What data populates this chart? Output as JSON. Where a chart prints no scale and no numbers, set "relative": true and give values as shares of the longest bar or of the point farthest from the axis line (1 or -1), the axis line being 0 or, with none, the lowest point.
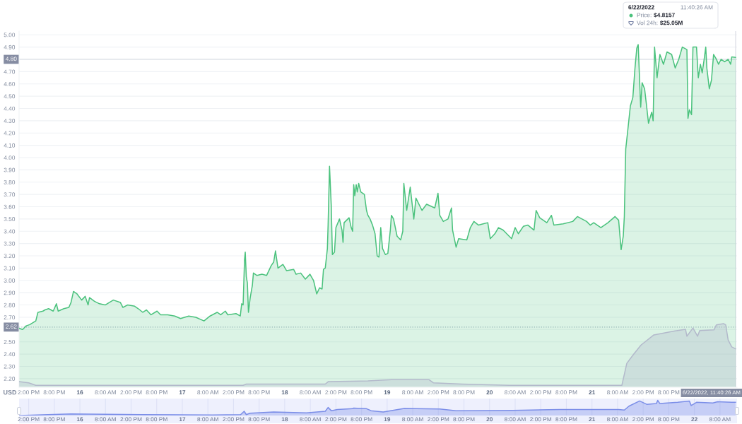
{
  "chart_data": [
    {
      "type": "area",
      "color": "#4bc27d",
      "ylabel": "USD",
      "grid": "y",
      "xlim": [
        "2022-06-15T11:45",
        "2022-06-22T12:00"
      ],
      "ylim": [
        2.13,
        5.03
      ],
      "yticks": [
        {
          "value": 2.2,
          "label": "2.20"
        },
        {
          "value": 2.3,
          "label": "2.30"
        },
        {
          "value": 2.4,
          "label": "2.40"
        },
        {
          "value": 2.5,
          "label": "2.50"
        },
        {
          "value": 2.6,
          "label": null
        },
        {
          "value": 2.7,
          "label": "2.70"
        },
        {
          "value": 2.8,
          "label": "2.80"
        },
        {
          "value": 2.9,
          "label": "2.90"
        },
        {
          "value": 3.0,
          "label": "3.00"
        },
        {
          "value": 3.1,
          "label": "3.10"
        },
        {
          "value": 3.2,
          "label": "3.20"
        },
        {
          "value": 3.3,
          "label": "3.30"
        },
        {
          "value": 3.4,
          "label": "3.40"
        },
        {
          "value": 3.5,
          "label": "3.50"
        },
        {
          "value": 3.6,
          "label": "3.60"
        },
        {
          "value": 3.7,
          "label": "3.70"
        },
        {
          "value": 3.8,
          "label": "3.80"
        },
        {
          "value": 3.9,
          "label": "3.90"
        },
        {
          "value": 4.0,
          "label": "4.00"
        },
        {
          "value": 4.1,
          "label": "4.10"
        },
        {
          "value": 4.2,
          "label": "4.20"
        },
        {
          "value": 4.3,
          "label": "4.30"
        },
        {
          "value": 4.4,
          "label": "4.40"
        },
        {
          "value": 4.5,
          "label": "4.50"
        },
        {
          "value": 4.6,
          "label": "4.60"
        },
        {
          "value": 4.7,
          "label": "4.70"
        },
        {
          "value": 4.8,
          "label": null
        },
        {
          "value": 4.9,
          "label": "4.90"
        },
        {
          "value": 5.0,
          "label": "5.00"
        }
      ],
      "xticks": [
        {
          "value": "2022-06-15T14:00",
          "label": "2:00 PM"
        },
        {
          "value": "2022-06-15T20:00",
          "label": "8:00 PM"
        },
        {
          "value": "2022-06-16T02:00",
          "label": "16"
        },
        {
          "value": "2022-06-16T08:00",
          "label": "8:00 AM"
        },
        {
          "value": "2022-06-16T14:00",
          "label": "2:00 PM"
        },
        {
          "value": "2022-06-16T20:00",
          "label": "8:00 PM"
        },
        {
          "value": "2022-06-17T02:00",
          "label": "17"
        },
        {
          "value": "2022-06-17T08:00",
          "label": "8:00 AM"
        },
        {
          "value": "2022-06-17T14:00",
          "label": "2:00 PM"
        },
        {
          "value": "2022-06-17T20:00",
          "label": "8:00 PM"
        },
        {
          "value": "2022-06-18T02:00",
          "label": "18"
        },
        {
          "value": "2022-06-18T08:00",
          "label": "8:00 AM"
        },
        {
          "value": "2022-06-18T14:00",
          "label": "2:00 PM"
        },
        {
          "value": "2022-06-18T20:00",
          "label": "8:00 PM"
        },
        {
          "value": "2022-06-19T02:00",
          "label": "19"
        },
        {
          "value": "2022-06-19T08:00",
          "label": "8:00 AM"
        },
        {
          "value": "2022-06-19T14:00",
          "label": "2:00 PM"
        },
        {
          "value": "2022-06-19T20:00",
          "label": "8:00 PM"
        },
        {
          "value": "2022-06-20T02:00",
          "label": "20"
        },
        {
          "value": "2022-06-20T08:00",
          "label": "8:00 AM"
        },
        {
          "value": "2022-06-20T14:00",
          "label": "2:00 PM"
        },
        {
          "value": "2022-06-20T20:00",
          "label": "8:00 PM"
        },
        {
          "value": "2022-06-21T02:00",
          "label": "21"
        },
        {
          "value": "2022-06-21T08:00",
          "label": "8:00 AM"
        },
        {
          "value": "2022-06-21T14:00",
          "label": "2:00 PM"
        },
        {
          "value": "2022-06-21T20:00",
          "label": "8:00 PM"
        }
      ],
      "ref_lines": [
        {
          "axis": "y",
          "value": 2.62,
          "label": "2.62",
          "color": "#a6b0c3",
          "line_style": "dotted"
        },
        {
          "axis": "y",
          "value": 4.8,
          "label": "4.80",
          "color": "#dcdfe6",
          "line_style": "solid"
        },
        {
          "axis": "x",
          "value": "2022-06-22T11:40",
          "label": "6/22/2022, 11:40:26 AM",
          "color": "#dcdfe6",
          "line_style": "solid"
        }
      ],
      "annotations": [
        "6/22/2022",
        "11:40:26 AM",
        "Price:",
        "$4.8157",
        "Vol 24h:",
        "$25.05M"
      ],
      "x": [
        "2022-06-15T11:45",
        "2022-06-15T12:35",
        "2022-06-15T13:25",
        "2022-06-15T14:15",
        "2022-06-15T15:40",
        "2022-06-15T16:10",
        "2022-06-15T17:20",
        "2022-06-15T17:50",
        "2022-06-15T18:40",
        "2022-06-15T19:45",
        "2022-06-15T20:30",
        "2022-06-15T20:55",
        "2022-06-15T22:15",
        "2022-06-15T23:25",
        "2022-06-15T23:55",
        "2022-06-16T00:30",
        "2022-06-16T01:20",
        "2022-06-16T02:25",
        "2022-06-16T03:15",
        "2022-06-16T03:55",
        "2022-06-16T04:15",
        "2022-06-16T05:25",
        "2022-06-16T06:35",
        "2022-06-16T07:55",
        "2022-06-16T09:50",
        "2022-06-16T11:30",
        "2022-06-16T12:05",
        "2022-06-16T13:10",
        "2022-06-16T14:50",
        "2022-06-16T15:40",
        "2022-06-16T16:45",
        "2022-06-16T17:35",
        "2022-06-16T18:40",
        "2022-06-16T20:05",
        "2022-06-16T20:55",
        "2022-06-16T22:35",
        "2022-06-17T00:15",
        "2022-06-17T01:35",
        "2022-06-17T03:30",
        "2022-06-17T05:10",
        "2022-06-17T07:05",
        "2022-06-17T08:30",
        "2022-06-17T10:10",
        "2022-06-17T11:00",
        "2022-06-17T12:05",
        "2022-06-17T12:40",
        "2022-06-17T14:35",
        "2022-06-17T15:35",
        "2022-06-17T15:55",
        "2022-06-17T16:15",
        "2022-06-17T16:35",
        "2022-06-17T16:45",
        "2022-06-17T17:00",
        "2022-06-17T17:15",
        "2022-06-17T17:30",
        "2022-06-17T17:55",
        "2022-06-17T18:25",
        "2022-06-17T18:40",
        "2022-06-17T19:30",
        "2022-06-17T20:40",
        "2022-06-17T21:45",
        "2022-06-17T22:50",
        "2022-06-17T23:25",
        "2022-06-17T23:50",
        "2022-06-18T00:25",
        "2022-06-18T01:35",
        "2022-06-18T02:25",
        "2022-06-18T04:05",
        "2022-06-18T04:40",
        "2022-06-18T05:45",
        "2022-06-18T06:50",
        "2022-06-18T07:55",
        "2022-06-18T08:45",
        "2022-06-18T09:30",
        "2022-06-18T10:10",
        "2022-06-18T10:45",
        "2022-06-18T11:05",
        "2022-06-18T11:30",
        "2022-06-18T12:00",
        "2022-06-18T12:10",
        "2022-06-18T12:30",
        "2022-06-18T12:55",
        "2022-06-18T13:10",
        "2022-06-18T13:40",
        "2022-06-18T14:00",
        "2022-06-18T14:50",
        "2022-06-18T15:25",
        "2022-06-18T15:40",
        "2022-06-18T15:55",
        "2022-06-18T17:05",
        "2022-06-18T17:35",
        "2022-06-18T17:55",
        "2022-06-18T18:10",
        "2022-06-18T18:25",
        "2022-06-18T18:45",
        "2022-06-18T19:00",
        "2022-06-18T19:20",
        "2022-06-18T19:50",
        "2022-06-18T20:40",
        "2022-06-18T21:10",
        "2022-06-18T21:30",
        "2022-06-18T22:00",
        "2022-06-18T22:35",
        "2022-06-18T23:10",
        "2022-06-18T23:40",
        "2022-06-19T00:05",
        "2022-06-19T00:30",
        "2022-06-19T00:55",
        "2022-06-19T01:35",
        "2022-06-19T02:10",
        "2022-06-19T02:45",
        "2022-06-19T03:00",
        "2022-06-19T03:30",
        "2022-06-19T04:20",
        "2022-06-19T05:10",
        "2022-06-19T05:40",
        "2022-06-19T05:55",
        "2022-06-19T06:35",
        "2022-06-19T07:25",
        "2022-06-19T08:15",
        "2022-06-19T08:45",
        "2022-06-19T10:10",
        "2022-06-19T11:15",
        "2022-06-19T13:10",
        "2022-06-19T13:55",
        "2022-06-19T14:20",
        "2022-06-19T15:10",
        "2022-06-19T16:15",
        "2022-06-19T17:05",
        "2022-06-19T17:20",
        "2022-06-19T18:10",
        "2022-06-19T18:45",
        "2022-06-19T20:40",
        "2022-06-19T21:30",
        "2022-06-19T22:20",
        "2022-06-19T23:25",
        "2022-06-20T00:30",
        "2022-06-20T01:35",
        "2022-06-20T02:10",
        "2022-06-20T03:15",
        "2022-06-20T04:05",
        "2022-06-20T05:10",
        "2022-06-20T07:10",
        "2022-06-20T08:00",
        "2022-06-20T08:45",
        "2022-06-20T09:55",
        "2022-06-20T11:00",
        "2022-06-20T12:25",
        "2022-06-20T12:55",
        "2022-06-20T13:45",
        "2022-06-20T15:25",
        "2022-06-20T16:30",
        "2022-06-20T17:05",
        "2022-06-20T19:15",
        "2022-06-20T21:30",
        "2022-06-20T22:35",
        "2022-06-21T00:45",
        "2022-06-21T01:35",
        "2022-06-21T02:25",
        "2022-06-21T04:05",
        "2022-06-21T05:45",
        "2022-06-21T07:25",
        "2022-06-21T08:15",
        "2022-06-21T08:50",
        "2022-06-21T09:20",
        "2022-06-21T09:35",
        "2022-06-21T09:55",
        "2022-06-21T10:25",
        "2022-06-21T11:00",
        "2022-06-21T11:35",
        "2022-06-21T12:05",
        "2022-06-21T12:30",
        "2022-06-21T12:50",
        "2022-06-21T13:25",
        "2022-06-21T13:45",
        "2022-06-21T14:20",
        "2022-06-21T14:50",
        "2022-06-21T15:15",
        "2022-06-21T16:00",
        "2022-06-21T16:20",
        "2022-06-21T16:40",
        "2022-06-21T17:15",
        "2022-06-21T17:55",
        "2022-06-21T18:45",
        "2022-06-21T19:35",
        "2022-06-21T20:40",
        "2022-06-21T21:30",
        "2022-06-21T22:20",
        "2022-06-21T23:10",
        "2022-06-22T00:15",
        "2022-06-22T00:30",
        "2022-06-22T00:50",
        "2022-06-22T01:20",
        "2022-06-22T01:40",
        "2022-06-22T02:30",
        "2022-06-22T02:55",
        "2022-06-22T03:25",
        "2022-06-22T03:50",
        "2022-06-22T04:15",
        "2022-06-22T04:40",
        "2022-06-22T04:55",
        "2022-06-22T05:30",
        "2022-06-22T06:00",
        "2022-06-22T06:30",
        "2022-06-22T07:10",
        "2022-06-22T07:40",
        "2022-06-22T08:15",
        "2022-06-22T09:05",
        "2022-06-22T09:55",
        "2022-06-22T10:30",
        "2022-06-22T10:45",
        "2022-06-22T11:40"
      ],
      "values": [
        2.61,
        2.6,
        2.63,
        2.64,
        2.67,
        2.74,
        2.75,
        2.76,
        2.77,
        2.75,
        2.81,
        2.75,
        2.77,
        2.78,
        2.82,
        2.91,
        2.89,
        2.84,
        2.87,
        2.8,
        2.86,
        2.83,
        2.81,
        2.8,
        2.84,
        2.82,
        2.78,
        2.8,
        2.79,
        2.77,
        2.74,
        2.76,
        2.72,
        2.75,
        2.72,
        2.72,
        2.71,
        2.69,
        2.71,
        2.7,
        2.67,
        2.71,
        2.74,
        2.72,
        2.75,
        2.72,
        2.73,
        2.71,
        2.81,
        2.8,
        3.17,
        3.23,
        3.03,
        2.98,
        2.74,
        2.86,
        2.96,
        3.06,
        3.04,
        3.05,
        3.04,
        3.12,
        3.15,
        3.24,
        3.1,
        3.13,
        3.08,
        3.09,
        3.05,
        3.06,
        3.01,
        3.05,
        3.0,
        2.89,
        2.94,
        2.93,
        3.09,
        3.1,
        3.26,
        3.45,
        3.93,
        3.6,
        3.21,
        3.23,
        3.43,
        3.5,
        3.41,
        3.31,
        3.47,
        3.51,
        3.43,
        3.4,
        3.78,
        3.69,
        3.78,
        3.72,
        3.79,
        3.72,
        3.7,
        3.57,
        3.53,
        3.5,
        3.45,
        3.38,
        3.2,
        3.19,
        3.43,
        3.26,
        3.21,
        3.22,
        3.41,
        3.53,
        3.5,
        3.36,
        3.33,
        3.4,
        3.79,
        3.57,
        3.76,
        3.5,
        3.67,
        3.57,
        3.62,
        3.59,
        3.71,
        3.53,
        3.48,
        3.5,
        3.59,
        3.41,
        3.27,
        3.34,
        3.33,
        3.43,
        3.48,
        3.45,
        3.46,
        3.47,
        3.34,
        3.38,
        3.43,
        3.41,
        3.34,
        3.43,
        3.38,
        3.44,
        3.45,
        3.41,
        3.57,
        3.51,
        3.47,
        3.53,
        3.45,
        3.46,
        3.48,
        3.52,
        3.48,
        3.45,
        3.47,
        3.43,
        3.47,
        3.52,
        3.49,
        3.25,
        3.36,
        3.52,
        4.07,
        4.23,
        4.42,
        4.49,
        4.73,
        4.89,
        4.92,
        4.41,
        4.61,
        4.56,
        4.41,
        4.28,
        4.37,
        4.3,
        4.9,
        4.65,
        4.84,
        4.76,
        4.86,
        4.84,
        4.73,
        4.8,
        4.9,
        4.88,
        4.32,
        4.39,
        4.35,
        4.9,
        4.9,
        4.65,
        4.76,
        4.69,
        4.79,
        4.9,
        4.73,
        4.56,
        4.63,
        4.84,
        4.8,
        4.76,
        4.8,
        4.78,
        4.8,
        4.76,
        4.82,
        4.8157
      ]
    },
    {
      "type": "area",
      "relative": true,
      "color": "#b3b9cb",
      "tick_labels": false,
      "xlim": [
        "2022-06-15T11:45",
        "2022-06-22T12:00"
      ],
      "x": [
        "2022-06-15T11:45",
        "2022-06-15T14:00",
        "2022-06-15T15:40",
        "2022-06-17T16:15",
        "2022-06-17T17:00",
        "2022-06-18T11:30",
        "2022-06-18T12:15",
        "2022-06-18T21:30",
        "2022-06-19T03:00",
        "2022-06-19T11:50",
        "2022-06-19T12:50",
        "2022-06-19T19:30",
        "2022-06-20T06:35",
        "2022-06-21T09:00",
        "2022-06-21T10:10",
        "2022-06-21T11:50",
        "2022-06-21T13:30",
        "2022-06-21T16:30",
        "2022-06-21T21:15",
        "2022-06-21T23:55",
        "2022-06-22T00:15",
        "2022-06-22T01:40",
        "2022-06-22T02:45",
        "2022-06-22T03:15",
        "2022-06-22T06:35",
        "2022-06-22T07:10",
        "2022-06-22T08:50",
        "2022-06-22T09:20",
        "2022-06-22T09:55",
        "2022-06-22T10:45",
        "2022-06-22T11:40"
      ],
      "values": [
        0.08,
        0.06,
        0.02,
        0.02,
        0.04,
        0.04,
        0.08,
        0.09,
        0.11,
        0.11,
        0.06,
        0.04,
        0.02,
        0.02,
        0.37,
        0.52,
        0.66,
        0.82,
        0.88,
        0.91,
        0.8,
        0.93,
        0.8,
        0.89,
        0.9,
        0.98,
        1.0,
        0.98,
        0.74,
        0.63,
        0.6
      ]
    },
    {
      "type": "area",
      "relative": true,
      "color": "#7b8ee8",
      "tick_labels": "x",
      "grid": "x",
      "xlim": [
        "2022-06-15T11:45",
        "2022-06-22T12:00"
      ],
      "xticks": [
        {
          "value": "2022-06-15T14:00",
          "label": "2:00 PM"
        },
        {
          "value": "2022-06-15T20:00",
          "label": "8:00 PM"
        },
        {
          "value": "2022-06-16T02:00",
          "label": "16"
        },
        {
          "value": "2022-06-16T08:00",
          "label": "8:00 AM"
        },
        {
          "value": "2022-06-16T14:00",
          "label": "2:00 PM"
        },
        {
          "value": "2022-06-16T20:00",
          "label": "8:00 PM"
        },
        {
          "value": "2022-06-17T02:00",
          "label": "17"
        },
        {
          "value": "2022-06-17T08:00",
          "label": "8:00 AM"
        },
        {
          "value": "2022-06-17T14:00",
          "label": "2:00 PM"
        },
        {
          "value": "2022-06-17T20:00",
          "label": "8:00 PM"
        },
        {
          "value": "2022-06-18T02:00",
          "label": "18"
        },
        {
          "value": "2022-06-18T08:00",
          "label": "8:00 AM"
        },
        {
          "value": "2022-06-18T14:00",
          "label": "2:00 PM"
        },
        {
          "value": "2022-06-18T20:00",
          "label": "8:00 PM"
        },
        {
          "value": "2022-06-19T02:00",
          "label": "19"
        },
        {
          "value": "2022-06-19T08:00",
          "label": "8:00 AM"
        },
        {
          "value": "2022-06-19T14:00",
          "label": "2:00 PM"
        },
        {
          "value": "2022-06-19T20:00",
          "label": "8:00 PM"
        },
        {
          "value": "2022-06-20T02:00",
          "label": "20"
        },
        {
          "value": "2022-06-20T08:00",
          "label": "8:00 AM"
        },
        {
          "value": "2022-06-20T14:00",
          "label": "2:00 PM"
        },
        {
          "value": "2022-06-20T20:00",
          "label": "8:00 PM"
        },
        {
          "value": "2022-06-21T02:00",
          "label": "21"
        },
        {
          "value": "2022-06-21T08:00",
          "label": "8:00 AM"
        },
        {
          "value": "2022-06-21T14:00",
          "label": "2:00 PM"
        },
        {
          "value": "2022-06-21T20:00",
          "label": "8:00 PM"
        },
        {
          "value": "2022-06-22T02:00",
          "label": "22"
        },
        {
          "value": "2022-06-22T08:00",
          "label": "8:00 AM"
        }
      ],
      "x": [
        "2022-06-15T11:45",
        "2022-06-15T23:55",
        "2022-06-16T16:30",
        "2022-06-17T09:05",
        "2022-06-17T15:40",
        "2022-06-17T16:30",
        "2022-06-17T17:00",
        "2022-06-17T17:50",
        "2022-06-17T23:25",
        "2022-06-18T07:05",
        "2022-06-18T11:30",
        "2022-06-18T12:10",
        "2022-06-18T12:55",
        "2022-06-18T14:20",
        "2022-06-18T17:55",
        "2022-06-18T18:10",
        "2022-06-18T21:10",
        "2022-06-18T22:15",
        "2022-06-19T01:05",
        "2022-06-19T06:00",
        "2022-06-19T14:20",
        "2022-06-19T18:10",
        "2022-06-20T07:25",
        "2022-06-20T18:25",
        "2022-06-21T08:15",
        "2022-06-21T09:35",
        "2022-06-21T10:40",
        "2022-06-21T13:10",
        "2022-06-21T14:50",
        "2022-06-21T17:05",
        "2022-06-21T17:25",
        "2022-06-21T17:55",
        "2022-06-21T22:05",
        "2022-06-22T00:50",
        "2022-06-22T01:15",
        "2022-06-22T02:30",
        "2022-06-22T06:20",
        "2022-06-22T07:25",
        "2022-06-22T10:45",
        "2022-06-22T11:40"
      ],
      "values": [
        0.0,
        0.11,
        0.06,
        0.04,
        0.06,
        0.28,
        0.06,
        0.15,
        0.23,
        0.17,
        0.28,
        0.53,
        0.32,
        0.4,
        0.45,
        0.49,
        0.45,
        0.32,
        0.23,
        0.47,
        0.43,
        0.32,
        0.34,
        0.4,
        0.4,
        0.36,
        0.62,
        0.96,
        0.74,
        0.79,
        1.0,
        0.79,
        0.87,
        0.96,
        0.66,
        0.87,
        0.83,
        0.91,
        0.87,
        0.87
      ]
    }
  ]
}
